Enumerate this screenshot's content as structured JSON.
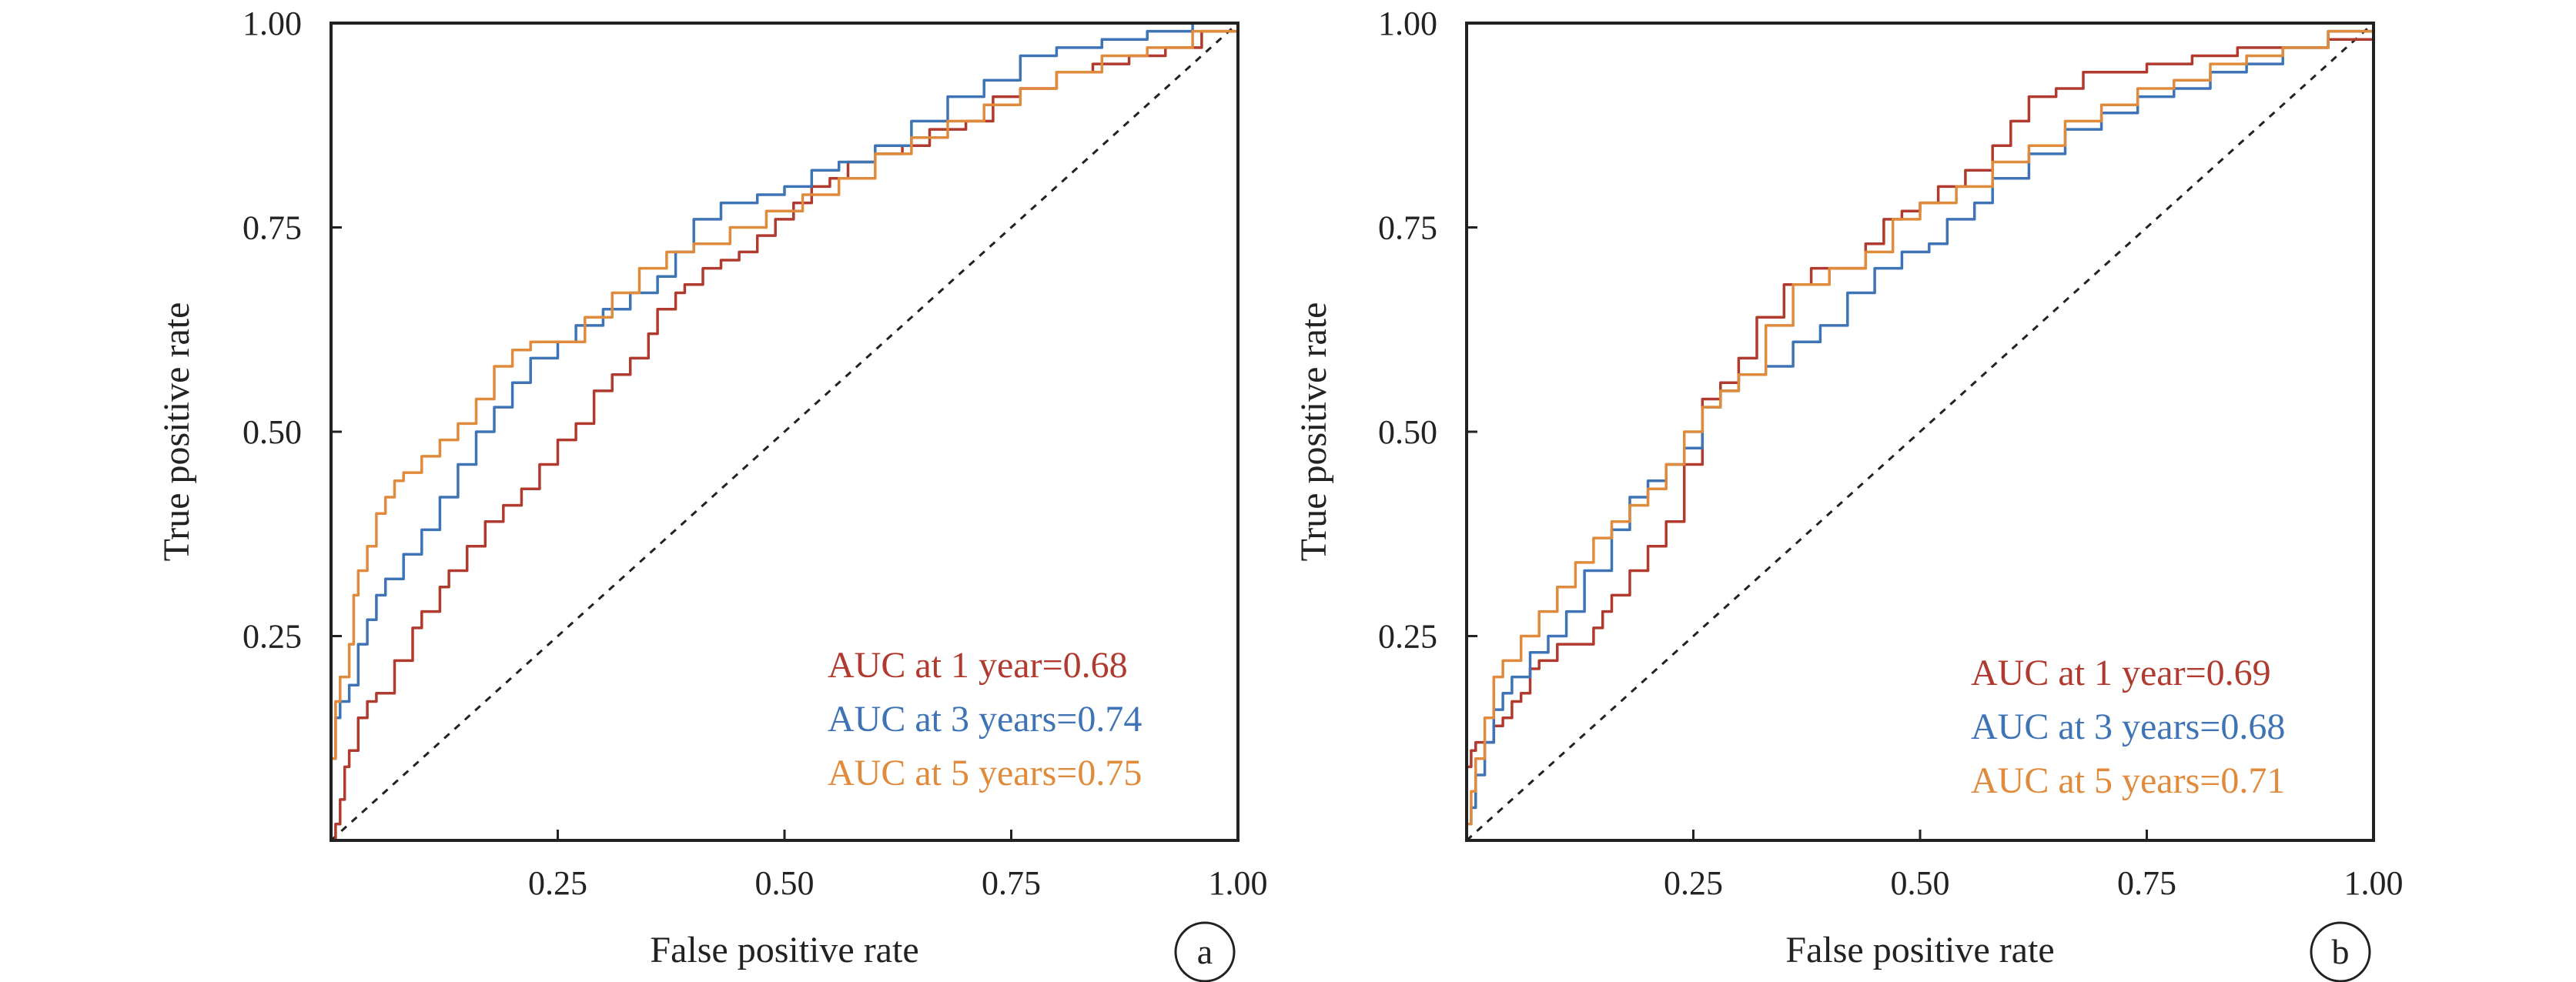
{
  "colors": {
    "1 year": "#B03A2E",
    "3 years": "#3E74B6",
    "5 years": "#E08A3C",
    "axis": "#222222",
    "diagonal": "#222222"
  },
  "chart_data": [
    {
      "panel": "a",
      "type": "line",
      "xlabel": "False positive rate",
      "ylabel": "True positive rate",
      "xlim": [
        0,
        1
      ],
      "ylim": [
        0,
        1
      ],
      "xticks": [
        "0.25",
        "0.50",
        "0.75",
        "1.00"
      ],
      "yticks": [
        "0.25",
        "0.50",
        "0.75",
        "1.00"
      ],
      "grid": false,
      "diagonal_reference": true,
      "legend_position": "bottom-right",
      "series": [
        {
          "name": "AUC at 1 year=0.68",
          "key": "1 year",
          "x": [
            0,
            0.005,
            0.01,
            0.015,
            0.02,
            0.03,
            0.04,
            0.05,
            0.07,
            0.09,
            0.1,
            0.12,
            0.13,
            0.15,
            0.17,
            0.19,
            0.21,
            0.23,
            0.25,
            0.27,
            0.29,
            0.31,
            0.33,
            0.35,
            0.36,
            0.38,
            0.39,
            0.41,
            0.43,
            0.45,
            0.47,
            0.49,
            0.51,
            0.53,
            0.55,
            0.57,
            0.6,
            0.63,
            0.66,
            0.7,
            0.73,
            0.76,
            0.8,
            0.84,
            0.88,
            0.92,
            0.96,
            1.0
          ],
          "y": [
            0,
            0.02,
            0.05,
            0.09,
            0.11,
            0.15,
            0.17,
            0.18,
            0.22,
            0.26,
            0.28,
            0.31,
            0.33,
            0.36,
            0.39,
            0.41,
            0.43,
            0.46,
            0.49,
            0.51,
            0.55,
            0.57,
            0.59,
            0.62,
            0.65,
            0.67,
            0.68,
            0.7,
            0.71,
            0.72,
            0.74,
            0.76,
            0.78,
            0.8,
            0.81,
            0.83,
            0.84,
            0.85,
            0.87,
            0.88,
            0.91,
            0.92,
            0.94,
            0.95,
            0.96,
            0.97,
            0.99,
            1.0
          ]
        },
        {
          "name": "AUC at 3 years=0.74",
          "key": "3 years",
          "x": [
            0,
            0.005,
            0.01,
            0.02,
            0.03,
            0.04,
            0.05,
            0.06,
            0.08,
            0.1,
            0.12,
            0.14,
            0.16,
            0.18,
            0.2,
            0.22,
            0.25,
            0.27,
            0.3,
            0.33,
            0.36,
            0.38,
            0.4,
            0.43,
            0.47,
            0.5,
            0.53,
            0.56,
            0.6,
            0.64,
            0.68,
            0.72,
            0.76,
            0.8,
            0.85,
            0.9,
            0.95,
            1.0
          ],
          "y": [
            0.1,
            0.15,
            0.17,
            0.19,
            0.24,
            0.27,
            0.3,
            0.32,
            0.35,
            0.38,
            0.42,
            0.46,
            0.5,
            0.53,
            0.56,
            0.59,
            0.61,
            0.63,
            0.65,
            0.67,
            0.69,
            0.72,
            0.76,
            0.78,
            0.79,
            0.8,
            0.82,
            0.83,
            0.85,
            0.88,
            0.91,
            0.93,
            0.96,
            0.97,
            0.98,
            0.99,
            1.0,
            1.0
          ]
        },
        {
          "name": "AUC at 5 years=0.75",
          "key": "5 years",
          "x": [
            0,
            0.005,
            0.01,
            0.02,
            0.025,
            0.03,
            0.04,
            0.05,
            0.06,
            0.07,
            0.08,
            0.1,
            0.12,
            0.14,
            0.16,
            0.18,
            0.2,
            0.22,
            0.25,
            0.28,
            0.31,
            0.34,
            0.37,
            0.4,
            0.44,
            0.48,
            0.52,
            0.56,
            0.6,
            0.64,
            0.68,
            0.72,
            0.76,
            0.8,
            0.85,
            0.9,
            0.95,
            1.0
          ],
          "y": [
            0.1,
            0.17,
            0.2,
            0.24,
            0.3,
            0.33,
            0.36,
            0.4,
            0.42,
            0.44,
            0.45,
            0.47,
            0.49,
            0.51,
            0.54,
            0.58,
            0.6,
            0.61,
            0.61,
            0.64,
            0.67,
            0.7,
            0.72,
            0.73,
            0.75,
            0.77,
            0.79,
            0.81,
            0.84,
            0.86,
            0.88,
            0.9,
            0.92,
            0.94,
            0.96,
            0.97,
            0.99,
            1.0
          ]
        }
      ],
      "legend": [
        "AUC at 1 year=0.68",
        "AUC at 3 years=0.74",
        "AUC at 5 years=0.75"
      ]
    },
    {
      "panel": "b",
      "type": "line",
      "xlabel": "False positive rate",
      "ylabel": "True positive rate",
      "xlim": [
        0,
        1
      ],
      "ylim": [
        0,
        1
      ],
      "xticks": [
        "0.25",
        "0.50",
        "0.75",
        "1.00"
      ],
      "yticks": [
        "0.25",
        "0.50",
        "0.75",
        "1.00"
      ],
      "grid": false,
      "diagonal_reference": true,
      "legend_position": "bottom-right",
      "series": [
        {
          "name": "AUC at 1 year=0.69",
          "key": "1 year",
          "x": [
            0,
            0.005,
            0.01,
            0.02,
            0.03,
            0.04,
            0.05,
            0.06,
            0.07,
            0.08,
            0.1,
            0.12,
            0.14,
            0.15,
            0.16,
            0.18,
            0.2,
            0.22,
            0.24,
            0.26,
            0.28,
            0.3,
            0.32,
            0.35,
            0.38,
            0.42,
            0.44,
            0.46,
            0.48,
            0.5,
            0.52,
            0.55,
            0.58,
            0.6,
            0.62,
            0.65,
            0.68,
            0.72,
            0.75,
            0.8,
            0.85,
            0.9,
            0.95,
            1.0
          ],
          "y": [
            0.09,
            0.11,
            0.12,
            0.12,
            0.14,
            0.15,
            0.17,
            0.18,
            0.21,
            0.22,
            0.24,
            0.24,
            0.26,
            0.28,
            0.3,
            0.33,
            0.36,
            0.39,
            0.46,
            0.54,
            0.56,
            0.59,
            0.64,
            0.68,
            0.7,
            0.7,
            0.73,
            0.76,
            0.77,
            0.78,
            0.8,
            0.82,
            0.85,
            0.88,
            0.91,
            0.92,
            0.94,
            0.94,
            0.95,
            0.96,
            0.97,
            0.97,
            0.98,
            1.0
          ]
        },
        {
          "name": "AUC at 3 years=0.68",
          "key": "3 years",
          "x": [
            0,
            0.005,
            0.01,
            0.02,
            0.03,
            0.04,
            0.05,
            0.07,
            0.09,
            0.11,
            0.13,
            0.16,
            0.18,
            0.2,
            0.22,
            0.24,
            0.26,
            0.28,
            0.3,
            0.33,
            0.36,
            0.39,
            0.42,
            0.45,
            0.48,
            0.51,
            0.53,
            0.56,
            0.58,
            0.62,
            0.66,
            0.7,
            0.74,
            0.78,
            0.82,
            0.86,
            0.9,
            0.95,
            1.0
          ],
          "y": [
            0.02,
            0.04,
            0.08,
            0.12,
            0.16,
            0.18,
            0.2,
            0.23,
            0.25,
            0.28,
            0.33,
            0.38,
            0.42,
            0.44,
            0.46,
            0.48,
            0.53,
            0.55,
            0.57,
            0.58,
            0.61,
            0.63,
            0.67,
            0.7,
            0.72,
            0.73,
            0.76,
            0.78,
            0.81,
            0.84,
            0.87,
            0.89,
            0.91,
            0.92,
            0.94,
            0.95,
            0.97,
            0.99,
            1.0
          ]
        },
        {
          "name": "AUC at 5 years=0.71",
          "key": "5 years",
          "x": [
            0,
            0.005,
            0.01,
            0.02,
            0.03,
            0.04,
            0.06,
            0.08,
            0.1,
            0.12,
            0.14,
            0.16,
            0.18,
            0.2,
            0.22,
            0.24,
            0.26,
            0.28,
            0.3,
            0.33,
            0.36,
            0.4,
            0.44,
            0.47,
            0.5,
            0.54,
            0.58,
            0.62,
            0.66,
            0.7,
            0.74,
            0.78,
            0.82,
            0.86,
            0.9,
            0.95,
            1.0
          ],
          "y": [
            0.02,
            0.06,
            0.1,
            0.15,
            0.2,
            0.22,
            0.25,
            0.28,
            0.31,
            0.34,
            0.37,
            0.39,
            0.41,
            0.43,
            0.46,
            0.5,
            0.53,
            0.55,
            0.57,
            0.63,
            0.68,
            0.7,
            0.72,
            0.76,
            0.78,
            0.8,
            0.83,
            0.85,
            0.88,
            0.9,
            0.92,
            0.93,
            0.95,
            0.96,
            0.97,
            0.99,
            1.0
          ]
        }
      ],
      "legend": [
        "AUC at 1 year=0.69",
        "AUC at 3 years=0.68",
        "AUC at 5 years=0.71"
      ]
    }
  ]
}
